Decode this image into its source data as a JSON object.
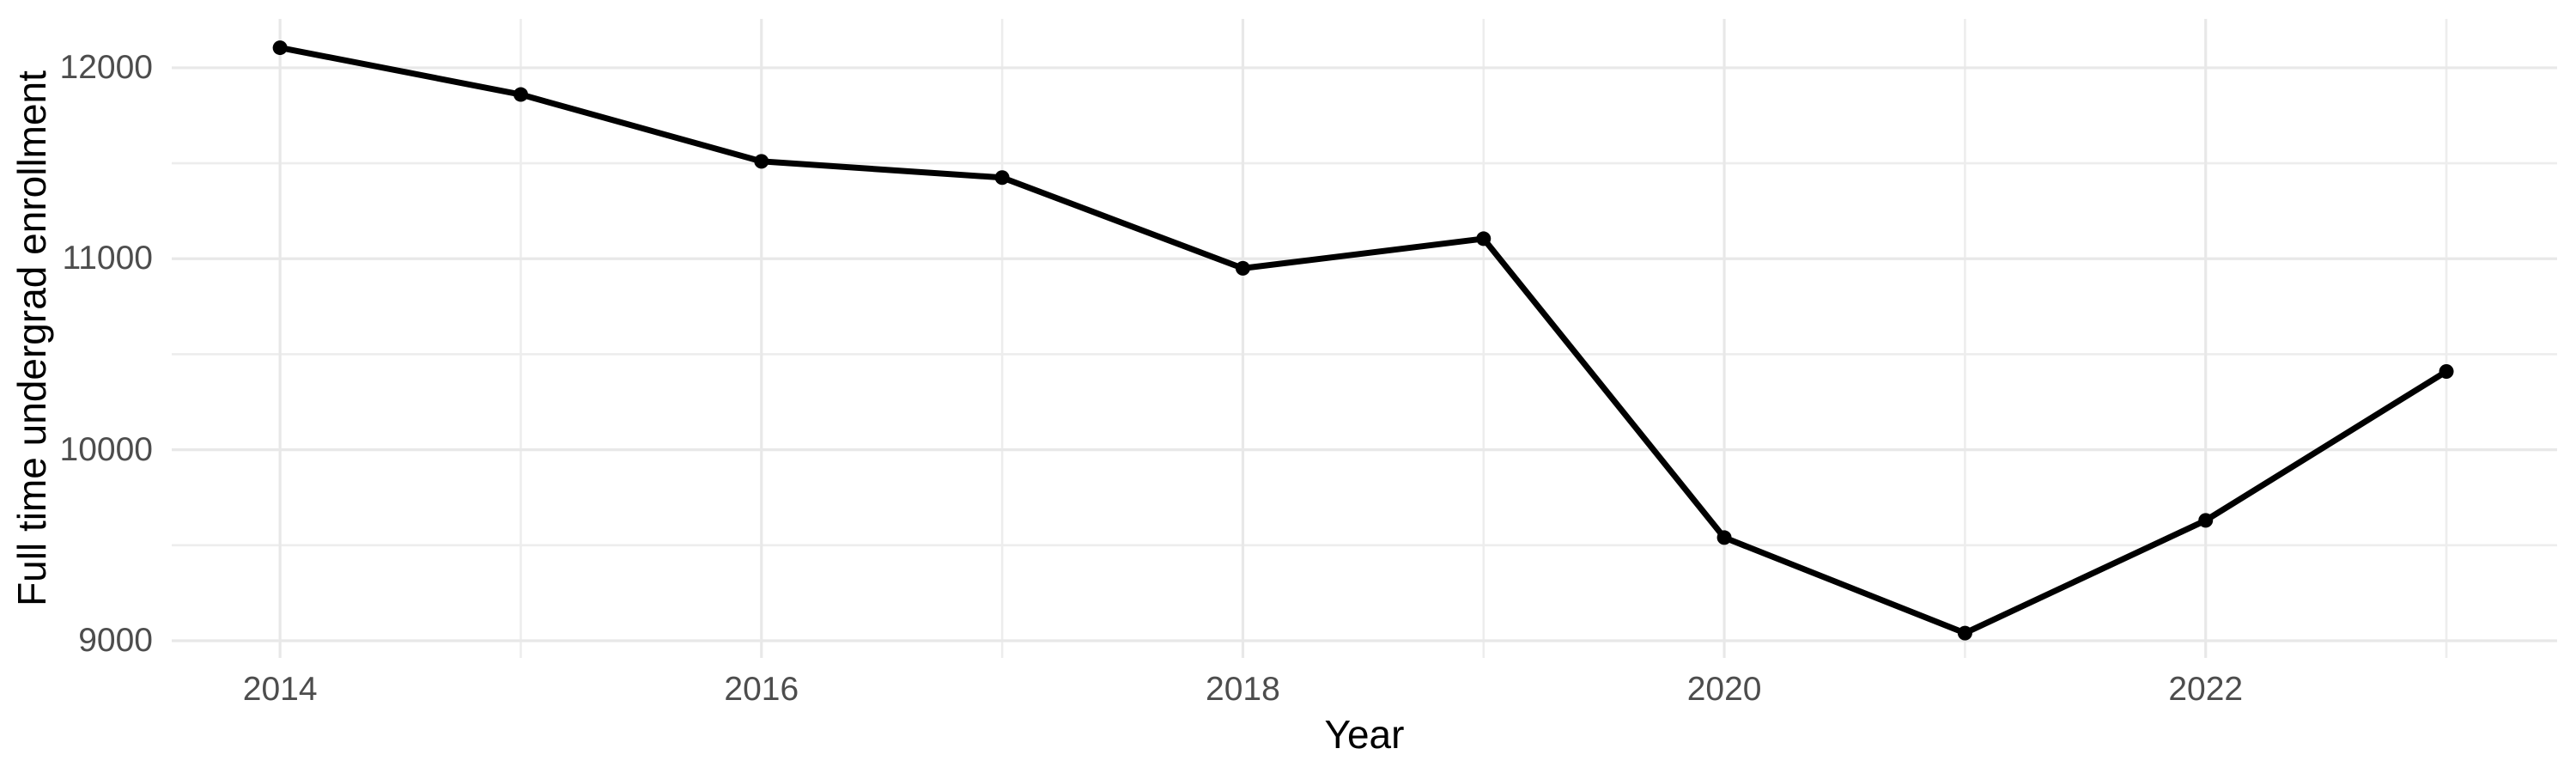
{
  "chart_data": {
    "type": "line",
    "title": "",
    "xlabel": "Year",
    "ylabel": "Full time undergrad enrollment",
    "x": [
      2014,
      2015,
      2016,
      2017,
      2018,
      2019,
      2020,
      2021,
      2022,
      2023
    ],
    "series": [
      {
        "name": "Full time undergrad enrollment",
        "values": [
          12105,
          11860,
          11510,
          11425,
          10950,
          11105,
          9540,
          9040,
          9630,
          10410
        ]
      }
    ],
    "xlim": [
      2013.55,
      2023.46
    ],
    "ylim": [
      8910,
      12256
    ],
    "x_ticks": [
      2014,
      2016,
      2018,
      2020,
      2022
    ],
    "x_tick_labels": [
      "2014",
      "2016",
      "2018",
      "2020",
      "2022"
    ],
    "y_ticks": [
      9000,
      10000,
      11000,
      12000
    ],
    "y_tick_labels": [
      "9000",
      "10000",
      "11000",
      "12000"
    ],
    "x_minor_gridlines": [
      2015,
      2017,
      2019,
      2021,
      2023
    ],
    "y_minor_gridlines": [
      9500,
      10500,
      11500
    ],
    "grid": true,
    "legend_position": "none",
    "styles": {
      "line_color": "#000000",
      "line_width": 7,
      "point_color": "#000000",
      "point_radius": 8.5,
      "major_grid_color": "#E8E8E8",
      "minor_grid_color": "#EDEDED",
      "major_grid_width": 3.2,
      "minor_grid_width": 2.6,
      "tick_label_color": "#4D4D4D",
      "axis_title_color": "#000000",
      "background_color": "#FFFFFF"
    }
  }
}
